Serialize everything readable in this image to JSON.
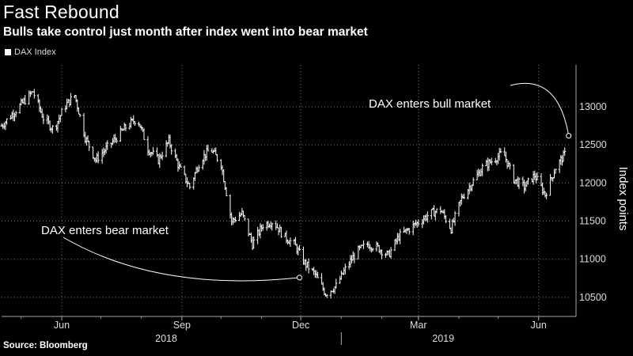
{
  "header": {
    "title": "Fast Rebound",
    "subtitle": "Bulls take control just month after index went into bear market",
    "source": "Source: Bloomberg"
  },
  "chart_data": {
    "type": "line",
    "style": "ohlc-bars",
    "title": "Fast Rebound",
    "subtitle": "Bulls take control just month after index went into bear market",
    "legend": [
      {
        "name": "DAX Index",
        "color": "#ffffff"
      }
    ],
    "legend_position": "top-left",
    "ylabel": "Index points",
    "y_axis_side": "right",
    "ylim": [
      10250,
      13550
    ],
    "yticks": [
      10500,
      11000,
      11500,
      12000,
      12500,
      13000
    ],
    "x_range": [
      "2018-04-16",
      "2019-06-26"
    ],
    "x_ticks": [
      {
        "label": "Jun",
        "date": "2018-06-01"
      },
      {
        "label": "Sep",
        "date": "2018-09-01"
      },
      {
        "label": "Dec",
        "date": "2018-12-01"
      },
      {
        "label": "Mar",
        "date": "2019-03-01"
      },
      {
        "label": "Jun",
        "date": "2019-06-01"
      }
    ],
    "x_year_labels": [
      {
        "label": "2018",
        "date": "2018-08-20"
      },
      {
        "label": "2019",
        "date": "2019-03-20"
      }
    ],
    "year_separator_date": "2019-01-01",
    "grid": true,
    "series": [
      {
        "name": "DAX Index",
        "x": [
          "2018-04-16",
          "2018-04-24",
          "2018-05-02",
          "2018-05-10",
          "2018-05-18",
          "2018-05-26",
          "2018-06-03",
          "2018-06-11",
          "2018-06-19",
          "2018-06-27",
          "2018-07-05",
          "2018-07-13",
          "2018-07-21",
          "2018-07-29",
          "2018-08-06",
          "2018-08-14",
          "2018-08-22",
          "2018-08-30",
          "2018-09-07",
          "2018-09-15",
          "2018-09-23",
          "2018-10-01",
          "2018-10-09",
          "2018-10-17",
          "2018-10-25",
          "2018-11-02",
          "2018-11-10",
          "2018-11-18",
          "2018-11-26",
          "2018-12-04",
          "2018-12-12",
          "2018-12-20",
          "2018-12-28",
          "2019-01-05",
          "2019-01-13",
          "2019-01-21",
          "2019-01-29",
          "2019-02-06",
          "2019-02-14",
          "2019-02-22",
          "2019-03-02",
          "2019-03-10",
          "2019-03-18",
          "2019-03-26",
          "2019-04-03",
          "2019-04-11",
          "2019-04-19",
          "2019-04-27",
          "2019-05-05",
          "2019-05-13",
          "2019-05-21",
          "2019-05-29",
          "2019-06-06",
          "2019-06-14",
          "2019-06-22"
        ],
        "values": [
          12750,
          12900,
          13050,
          13200,
          12850,
          12700,
          13000,
          13150,
          12600,
          12300,
          12450,
          12600,
          12750,
          12850,
          12450,
          12300,
          12550,
          12200,
          11950,
          12300,
          12450,
          12250,
          11500,
          11600,
          11200,
          11450,
          11500,
          11300,
          11200,
          10950,
          10800,
          10550,
          10650,
          10900,
          11100,
          11200,
          11150,
          11050,
          11300,
          11400,
          11500,
          11600,
          11650,
          11400,
          11800,
          12000,
          12200,
          12300,
          12400,
          12050,
          11950,
          12100,
          11850,
          12200,
          12400
        ]
      }
    ],
    "annotations": [
      {
        "text": "DAX enters bear market",
        "date": "2018-11-30",
        "value": 10760
      },
      {
        "text": "DAX enters bull market",
        "date": "2019-06-24",
        "value": 12620
      }
    ]
  }
}
